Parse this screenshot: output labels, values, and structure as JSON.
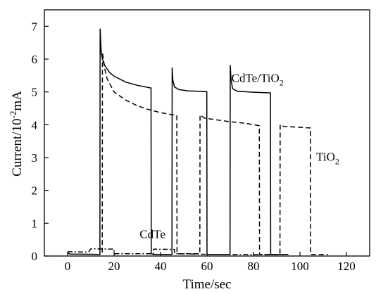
{
  "chart_data": {
    "type": "line",
    "xlabel": "Time/sec",
    "ylabel_parts": {
      "base": "Current/10",
      "exp": "-2",
      "unit": "mA"
    },
    "xlim": [
      -10,
      130
    ],
    "ylim": [
      0,
      7.5
    ],
    "xticks": [
      0,
      20,
      40,
      60,
      80,
      100,
      120
    ],
    "yticks": [
      0,
      1,
      2,
      3,
      4,
      5,
      6,
      7
    ],
    "series": [
      {
        "name_parts": {
          "base": "CdTe/TiO",
          "sub": "2"
        },
        "style": "solid",
        "label_at": [
          70.5,
          5.3
        ],
        "points": [
          [
            0,
            0.1
          ],
          [
            1,
            0.06
          ],
          [
            13.9,
            0.05
          ],
          [
            14,
            6.93
          ],
          [
            14.5,
            6.2
          ],
          [
            15,
            6.0
          ],
          [
            16,
            5.8
          ],
          [
            18,
            5.6
          ],
          [
            20,
            5.48
          ],
          [
            25,
            5.3
          ],
          [
            30,
            5.2
          ],
          [
            35.9,
            5.12
          ],
          [
            36,
            0.07
          ],
          [
            37,
            0.05
          ],
          [
            44.9,
            0.05
          ],
          [
            45,
            5.74
          ],
          [
            45.3,
            5.35
          ],
          [
            46,
            5.15
          ],
          [
            48,
            5.07
          ],
          [
            52,
            5.03
          ],
          [
            59.9,
            5.01
          ],
          [
            60,
            0.05
          ],
          [
            69.9,
            0.05
          ],
          [
            70,
            5.82
          ],
          [
            70.3,
            5.4
          ],
          [
            71,
            5.1
          ],
          [
            73,
            5.02
          ],
          [
            80,
            4.99
          ],
          [
            87.3,
            4.97
          ],
          [
            87.4,
            0.05
          ],
          [
            95,
            0.05
          ]
        ]
      },
      {
        "name_parts": {
          "base": "TiO",
          "sub": "2"
        },
        "style": "dashed",
        "label_at": [
          107,
          2.9
        ],
        "points": [
          [
            14.9,
            0.1
          ],
          [
            15,
            6.2
          ],
          [
            15.5,
            5.95
          ],
          [
            16,
            5.7
          ],
          [
            17,
            5.4
          ],
          [
            20,
            5.0
          ],
          [
            25,
            4.75
          ],
          [
            30,
            4.58
          ],
          [
            35,
            4.46
          ],
          [
            40,
            4.37
          ],
          [
            47,
            4.28
          ],
          [
            47.1,
            0.07
          ],
          [
            56.9,
            0.07
          ],
          [
            57,
            4.3
          ],
          [
            59,
            4.2
          ],
          [
            63,
            4.16
          ],
          [
            70,
            4.09
          ],
          [
            77,
            4.04
          ],
          [
            82.5,
            3.97
          ],
          [
            82.6,
            0.05
          ],
          [
            91.4,
            0.05
          ],
          [
            91.5,
            4.0
          ],
          [
            93,
            3.95
          ],
          [
            98,
            3.93
          ],
          [
            104.5,
            3.9
          ],
          [
            104.6,
            0.05
          ],
          [
            112,
            0.05
          ]
        ]
      },
      {
        "name_parts": {
          "base": "CdTe",
          "sub": ""
        },
        "style": "dashdot",
        "label_at": [
          31,
          0.55
        ],
        "points": [
          [
            0,
            0.13
          ],
          [
            9,
            0.12
          ],
          [
            10,
            0.22
          ],
          [
            20,
            0.21
          ],
          [
            20.1,
            0.07
          ],
          [
            37,
            0.07
          ],
          [
            37.1,
            0.21
          ],
          [
            46,
            0.2
          ],
          [
            46.1,
            0.07
          ],
          [
            55,
            0.06
          ],
          [
            60,
            0.05
          ],
          [
            90,
            0.04
          ]
        ]
      }
    ]
  }
}
